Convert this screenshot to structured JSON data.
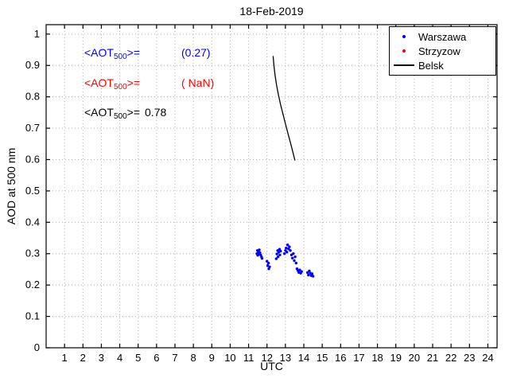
{
  "figure": {
    "title": "18-Feb-2019"
  },
  "axes": {
    "xlabel": "UTC",
    "ylabel": "AOD at 500 nm"
  },
  "legend": {
    "items": [
      {
        "label": "Warszawa",
        "color": "#0000ff",
        "marker": "dot"
      },
      {
        "label": "Strzyzow",
        "color": "#ff0000",
        "marker": "dot"
      },
      {
        "label": "Belsk",
        "color": "#000000",
        "marker": "line"
      }
    ]
  },
  "annotations": [
    {
      "text_main": "<AOT",
      "text_sub": "500",
      "text_rest": ">=",
      "value": "(0.27)",
      "color": "#0000ff"
    },
    {
      "text_main": "<AOT",
      "text_sub": "500",
      "text_rest": ">=",
      "value": "( NaN)",
      "color": "#ff0000"
    },
    {
      "text_main": "<AOT",
      "text_sub": "500",
      "text_rest": ">=",
      "value": "0.78",
      "color": "#000000"
    }
  ],
  "chart_data": {
    "type": "scatter",
    "title": "18-Feb-2019",
    "xlabel": "UTC",
    "ylabel": "AOD at 500 nm",
    "xlim": [
      0,
      24.5
    ],
    "ylim": [
      0,
      1.03
    ],
    "grid": true,
    "legend_position": "top-right",
    "xticks": [
      1,
      2,
      3,
      4,
      5,
      6,
      7,
      8,
      9,
      10,
      11,
      12,
      13,
      14,
      15,
      16,
      17,
      18,
      19,
      20,
      21,
      22,
      23,
      24
    ],
    "xtick_labels": [
      "1",
      "2",
      "3",
      "4",
      "5",
      "6",
      "7",
      "8",
      "9",
      "10",
      "11",
      "12",
      "13",
      "14",
      "15",
      "16",
      "17",
      "18",
      "19",
      "20",
      "21",
      "22",
      "23",
      "24"
    ],
    "yticks": [
      0,
      0.1,
      0.2,
      0.3,
      0.4,
      0.5,
      0.6,
      0.7,
      0.8,
      0.9,
      1
    ],
    "ytick_labels": [
      "0",
      "0.1",
      "0.2",
      "0.3",
      "0.4",
      "0.5",
      "0.6",
      "0.7",
      "0.8",
      "0.9",
      "1"
    ],
    "series": [
      {
        "name": "Warszawa",
        "type": "scatter",
        "color": "#0000ff",
        "points": [
          [
            11.45,
            0.3
          ],
          [
            11.48,
            0.31
          ],
          [
            11.5,
            0.295
          ],
          [
            11.53,
            0.306
          ],
          [
            11.56,
            0.298
          ],
          [
            11.58,
            0.312
          ],
          [
            11.62,
            0.303
          ],
          [
            11.66,
            0.296
          ],
          [
            11.7,
            0.29
          ],
          [
            11.73,
            0.285
          ],
          [
            12.0,
            0.276
          ],
          [
            12.04,
            0.262
          ],
          [
            12.08,
            0.27
          ],
          [
            12.1,
            0.252
          ],
          [
            12.14,
            0.258
          ],
          [
            12.5,
            0.284
          ],
          [
            12.54,
            0.299
          ],
          [
            12.58,
            0.31
          ],
          [
            12.6,
            0.29
          ],
          [
            12.64,
            0.305
          ],
          [
            12.68,
            0.314
          ],
          [
            12.7,
            0.296
          ],
          [
            12.74,
            0.308
          ],
          [
            12.95,
            0.3
          ],
          [
            13.0,
            0.31
          ],
          [
            13.04,
            0.318
          ],
          [
            13.08,
            0.305
          ],
          [
            13.12,
            0.328
          ],
          [
            13.17,
            0.315
          ],
          [
            13.22,
            0.322
          ],
          [
            13.27,
            0.31
          ],
          [
            13.33,
            0.296
          ],
          [
            13.38,
            0.286
          ],
          [
            13.43,
            0.3
          ],
          [
            13.48,
            0.278
          ],
          [
            13.53,
            0.29
          ],
          [
            13.58,
            0.27
          ],
          [
            13.63,
            0.252
          ],
          [
            13.68,
            0.246
          ],
          [
            13.73,
            0.24
          ],
          [
            13.78,
            0.248
          ],
          [
            13.83,
            0.238
          ],
          [
            13.88,
            0.243
          ],
          [
            14.2,
            0.24
          ],
          [
            14.25,
            0.232
          ],
          [
            14.3,
            0.245
          ],
          [
            14.35,
            0.238
          ],
          [
            14.4,
            0.23
          ],
          [
            14.45,
            0.236
          ],
          [
            14.5,
            0.228
          ]
        ]
      },
      {
        "name": "Strzyzow",
        "type": "scatter",
        "color": "#ff0000",
        "points": []
      },
      {
        "name": "Belsk",
        "type": "line",
        "color": "#000000",
        "points": [
          [
            12.33,
            0.93
          ],
          [
            12.38,
            0.898
          ],
          [
            12.44,
            0.868
          ],
          [
            12.52,
            0.838
          ],
          [
            12.62,
            0.806
          ],
          [
            12.74,
            0.775
          ],
          [
            12.88,
            0.742
          ],
          [
            13.02,
            0.71
          ],
          [
            13.16,
            0.678
          ],
          [
            13.3,
            0.648
          ],
          [
            13.42,
            0.62
          ],
          [
            13.52,
            0.597
          ]
        ]
      }
    ]
  }
}
